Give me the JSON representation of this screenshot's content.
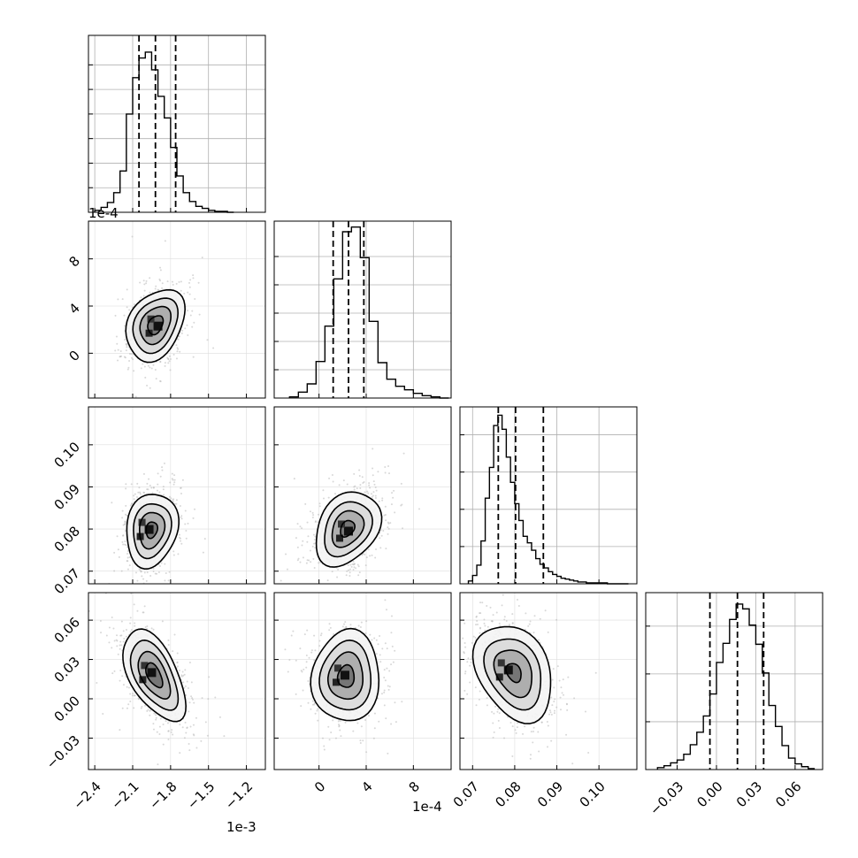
{
  "chart_data": {
    "type": "corner",
    "parameters": [
      {
        "axis_range": [
          -2.45,
          -1.05
        ],
        "sci_label": "1e-3",
        "ticks": [
          -2.4,
          -2.1,
          -1.8,
          -1.5,
          -1.2
        ],
        "tick_labels": [
          "−2.4",
          "−2.1",
          "−1.8",
          "−1.5",
          "−1.2"
        ],
        "quantiles": [
          -2.05,
          -1.92,
          -1.76
        ],
        "hist_bins": [
          -2.4,
          -2.35,
          -2.3,
          -2.25,
          -2.2,
          -2.15,
          -2.1,
          -2.05,
          -2.0,
          -1.95,
          -1.9,
          -1.85,
          -1.8,
          -1.75,
          -1.7,
          -1.65,
          -1.6,
          -1.55,
          -1.5,
          -1.45,
          -1.4,
          -1.35,
          -1.3
        ],
        "hist_counts": [
          2,
          5,
          10,
          20,
          42,
          100,
          137,
          157,
          163,
          145,
          118,
          96,
          66,
          37,
          20,
          11,
          6,
          4,
          2,
          1,
          1,
          0
        ],
        "hist_ylim": [
          0,
          180
        ],
        "hist_gridlines": [
          25,
          50,
          75,
          100,
          125,
          150
        ]
      },
      {
        "axis_range": [
          -3.8,
          11.2
        ],
        "sci_label": "1e-4",
        "ticks": [
          0,
          4,
          8
        ],
        "tick_labels": [
          "0",
          "4",
          "8"
        ],
        "quantiles": [
          1.2,
          2.5,
          3.8
        ],
        "hist_bins": [
          -2.5,
          -1.75,
          -1,
          -0.25,
          0.5,
          1.25,
          2,
          2.75,
          3.5,
          4.25,
          5,
          5.75,
          6.5,
          7.25,
          8,
          8.75,
          9.5,
          10.25,
          11
        ],
        "hist_counts": [
          1,
          5,
          12,
          31,
          61,
          101,
          141,
          145,
          119,
          65,
          30,
          16,
          10,
          7,
          4,
          2,
          1,
          0
        ],
        "hist_ylim": [
          0,
          150
        ],
        "hist_gridlines": [
          24,
          48,
          72,
          96,
          120
        ]
      },
      {
        "axis_range": [
          0.067,
          0.109
        ],
        "sci_label": "",
        "ticks": [
          0.07,
          0.08,
          0.09,
          0.1
        ],
        "tick_labels": [
          "0.07",
          "0.08",
          "0.09",
          "0.10"
        ],
        "quantiles": [
          0.0761,
          0.0802,
          0.0868
        ],
        "hist_bins": [
          0.069,
          0.07,
          0.071,
          0.072,
          0.073,
          0.074,
          0.075,
          0.076,
          0.077,
          0.078,
          0.079,
          0.08,
          0.081,
          0.082,
          0.083,
          0.084,
          0.085,
          0.086,
          0.087,
          0.088,
          0.089,
          0.09,
          0.091,
          0.092,
          0.093,
          0.094,
          0.095,
          0.096,
          0.097,
          0.098,
          0.099,
          0.1,
          0.101,
          0.102,
          0.103,
          0.104,
          0.105,
          0.106,
          0.107
        ],
        "hist_counts": [
          3,
          9,
          20,
          46,
          92,
          125,
          170,
          181,
          166,
          136,
          109,
          86,
          68,
          51,
          44,
          36,
          27,
          21,
          17,
          13,
          10,
          8,
          6,
          5,
          4,
          3,
          2,
          2,
          1,
          1,
          1,
          1,
          1,
          0,
          0,
          0,
          0,
          0
        ],
        "hist_ylim": [
          0,
          190
        ],
        "hist_gridlines": [
          40,
          80,
          120,
          160
        ]
      },
      {
        "axis_range": [
          -0.054,
          0.081
        ],
        "sci_label": "",
        "ticks": [
          -0.03,
          0.0,
          0.03,
          0.06
        ],
        "tick_labels": [
          "−0.03",
          "0.00",
          "0.03",
          "0.06"
        ],
        "quantiles": [
          -0.005,
          0.016,
          0.036
        ],
        "hist_bins": [
          -0.045,
          -0.04,
          -0.035,
          -0.03,
          -0.025,
          -0.02,
          -0.015,
          -0.01,
          -0.005,
          0.0,
          0.005,
          0.01,
          0.015,
          0.02,
          0.025,
          0.03,
          0.035,
          0.04,
          0.045,
          0.05,
          0.055,
          0.06,
          0.065,
          0.07,
          0.075
        ],
        "hist_counts": [
          2,
          4,
          7,
          10,
          16,
          26,
          39,
          56,
          79,
          112,
          132,
          157,
          173,
          168,
          151,
          131,
          101,
          67,
          45,
          25,
          12,
          6,
          3,
          1
        ],
        "hist_ylim": [
          0,
          185
        ],
        "hist_gridlines": [
          50,
          100,
          150
        ]
      }
    ],
    "pair_ticks_y": {
      "1": {
        "ticks": [
          0,
          4,
          8
        ],
        "tick_labels": [
          "0",
          "4",
          "8"
        ]
      },
      "2": {
        "ticks": [
          0.07,
          0.08,
          0.09,
          0.1
        ],
        "tick_labels": [
          "0.07",
          "0.08",
          "0.09",
          "0.10"
        ]
      },
      "3": {
        "ticks": [
          -0.03,
          0.0,
          0.03,
          0.06
        ],
        "tick_labels": [
          "−0.03",
          "0.00",
          "0.03",
          "0.06"
        ]
      }
    },
    "pairs": [
      {
        "row": 1,
        "col": 0,
        "center": [
          -1.92,
          2.4
        ],
        "sigma": [
          0.11,
          1.45
        ],
        "rho": 0.3,
        "contour_scale": [
          0.55,
          1.1,
          1.6,
          2.1
        ],
        "peak": [
          -1.9,
          2.3
        ]
      },
      {
        "row": 2,
        "col": 0,
        "center": [
          -1.95,
          0.0798
        ],
        "sigma": [
          0.1,
          0.0043
        ],
        "rho": 0.15,
        "contour_scale": [
          0.45,
          1.0,
          1.5,
          2.05
        ],
        "peak": [
          -1.97,
          0.0799
        ]
      },
      {
        "row": 2,
        "col": 1,
        "center": [
          2.4,
          0.0801
        ],
        "sigma": [
          1.35,
          0.0043
        ],
        "rho": 0.3,
        "contour_scale": [
          0.45,
          1.0,
          1.5,
          2.05
        ],
        "peak": [
          2.5,
          0.0795
        ]
      },
      {
        "row": 3,
        "col": 0,
        "center": [
          -1.93,
          0.018
        ],
        "sigma": [
          0.12,
          0.017
        ],
        "rho": -0.55,
        "contour_scale": [
          0.55,
          1.05,
          1.55,
          2.05
        ],
        "peak": [
          -1.95,
          0.02
        ]
      },
      {
        "row": 3,
        "col": 1,
        "center": [
          2.3,
          0.017
        ],
        "sigma": [
          1.4,
          0.017
        ],
        "rho": 0.05,
        "contour_scale": [
          0.5,
          1.05,
          1.55,
          2.05
        ],
        "peak": [
          2.2,
          0.018
        ]
      },
      {
        "row": 3,
        "col": 2,
        "center": [
          0.0798,
          0.02
        ],
        "sigma": [
          0.0045,
          0.018
        ],
        "rho": -0.3,
        "contour_scale": [
          0.4,
          1.0,
          1.5,
          2.05
        ],
        "peak": [
          0.0785,
          0.022
        ]
      }
    ],
    "grid": true,
    "colors": {
      "line": "#000000",
      "grid": "#b0b0b0",
      "points": "#b8b8b8"
    }
  }
}
